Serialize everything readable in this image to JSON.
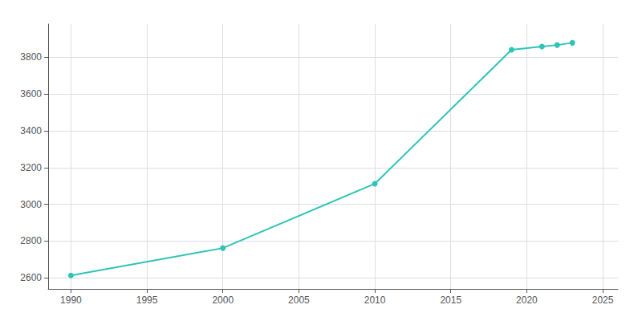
{
  "chart_data": {
    "type": "line",
    "x": [
      1990,
      2000,
      2010,
      2019,
      2021,
      2022,
      2023
    ],
    "values": [
      2613,
      2762,
      3112,
      3840,
      3858,
      3866,
      3878
    ],
    "color": "#2EC4B6",
    "marker": "circle",
    "xlim": [
      1988.5,
      2026
    ],
    "xticks": [
      1990,
      1995,
      2000,
      2005,
      2010,
      2015,
      2020,
      2025
    ],
    "ylim": [
      2540,
      3980
    ],
    "yticks": [
      2600,
      2800,
      3000,
      3200,
      3400,
      3600,
      3800
    ],
    "grid": true
  }
}
